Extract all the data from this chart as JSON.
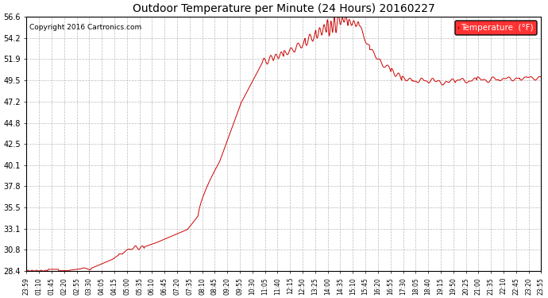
{
  "title": "Outdoor Temperature per Minute (24 Hours) 20160227",
  "copyright": "Copyright 2016 Cartronics.com",
  "legend_label": "Temperature  (°F)",
  "line_color": "#cc0000",
  "background_color": "#ffffff",
  "grid_color": "#bbbbbb",
  "yticks": [
    28.4,
    30.8,
    33.1,
    35.5,
    37.8,
    40.1,
    42.5,
    44.8,
    47.2,
    49.5,
    51.9,
    54.2,
    56.6
  ],
  "ymin": 28.4,
  "ymax": 56.6,
  "xtick_labels": [
    "23:59",
    "01:10",
    "01:45",
    "02:20",
    "02:55",
    "03:30",
    "04:05",
    "04:15",
    "05:00",
    "05:35",
    "06:10",
    "06:45",
    "07:20",
    "07:35",
    "08:10",
    "08:45",
    "09:20",
    "09:55",
    "10:30",
    "11:05",
    "11:40",
    "12:15",
    "12:50",
    "13:25",
    "14:00",
    "14:35",
    "15:10",
    "15:45",
    "16:20",
    "16:55",
    "17:30",
    "18:05",
    "18:40",
    "19:15",
    "19:50",
    "20:25",
    "21:00",
    "21:35",
    "22:10",
    "22:45",
    "23:20",
    "23:55"
  ]
}
